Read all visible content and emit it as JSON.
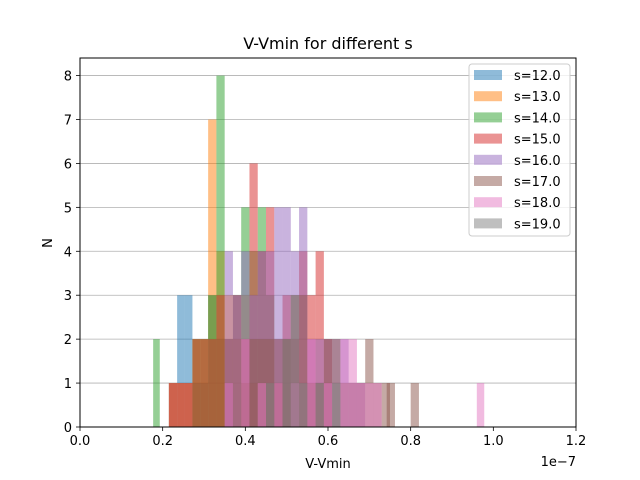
{
  "chart_data": {
    "type": "histogram",
    "title": "V-Vmin for different s",
    "xlabel": "V-Vmin",
    "ylabel": "N",
    "x_scale_label": "1e−7",
    "xlim": [
      0,
      1.2
    ],
    "ylim": [
      0,
      8.4
    ],
    "x_ticks": [
      0.0,
      0.2,
      0.4,
      0.6,
      0.8,
      1.0,
      1.2
    ],
    "x_tick_labels": [
      "0.0",
      "0.2",
      "0.4",
      "0.6",
      "0.8",
      "1.0",
      "1.2"
    ],
    "y_ticks": [
      0,
      1,
      2,
      3,
      4,
      5,
      6,
      7,
      8
    ],
    "y_tick_labels": [
      "0",
      "1",
      "2",
      "3",
      "4",
      "5",
      "6",
      "7",
      "8"
    ],
    "grid": "horizontal",
    "legend_position": "top-right",
    "bar_opacity": 0.5,
    "series": [
      {
        "name": "s=12.0",
        "color": "#1f77b4",
        "bars": [
          [
            0.215,
            0.235,
            1
          ],
          [
            0.235,
            0.253,
            3
          ],
          [
            0.253,
            0.272,
            3
          ],
          [
            0.272,
            0.291,
            1
          ],
          [
            0.291,
            0.31,
            1
          ],
          [
            0.31,
            0.33,
            3
          ],
          [
            0.33,
            0.35,
            2
          ],
          [
            0.35,
            0.37,
            1
          ]
        ]
      },
      {
        "name": "s=13.0",
        "color": "#ff7f0e",
        "bars": [
          [
            0.215,
            0.235,
            1
          ],
          [
            0.235,
            0.253,
            1
          ],
          [
            0.253,
            0.272,
            1
          ],
          [
            0.272,
            0.291,
            2
          ],
          [
            0.291,
            0.31,
            2
          ],
          [
            0.31,
            0.33,
            7
          ],
          [
            0.33,
            0.35,
            4
          ],
          [
            0.35,
            0.37,
            3
          ],
          [
            0.37,
            0.39,
            2
          ],
          [
            0.39,
            0.41,
            3
          ],
          [
            0.41,
            0.43,
            1
          ]
        ]
      },
      {
        "name": "s=14.0",
        "color": "#2ca02c",
        "bars": [
          [
            0.177,
            0.193,
            2
          ],
          [
            0.272,
            0.291,
            2
          ],
          [
            0.291,
            0.31,
            2
          ],
          [
            0.31,
            0.33,
            3
          ],
          [
            0.33,
            0.35,
            8
          ],
          [
            0.35,
            0.37,
            2
          ],
          [
            0.37,
            0.39,
            3
          ],
          [
            0.39,
            0.41,
            5
          ],
          [
            0.41,
            0.43,
            4
          ],
          [
            0.43,
            0.45,
            5
          ],
          [
            0.45,
            0.47,
            3
          ],
          [
            0.47,
            0.49,
            2
          ],
          [
            0.49,
            0.51,
            2
          ]
        ]
      },
      {
        "name": "s=15.0",
        "color": "#d62728",
        "bars": [
          [
            0.215,
            0.235,
            1
          ],
          [
            0.235,
            0.253,
            1
          ],
          [
            0.253,
            0.272,
            1
          ],
          [
            0.272,
            0.291,
            2
          ],
          [
            0.291,
            0.31,
            2
          ],
          [
            0.31,
            0.33,
            2
          ],
          [
            0.33,
            0.35,
            3
          ],
          [
            0.35,
            0.37,
            2
          ],
          [
            0.37,
            0.39,
            3
          ],
          [
            0.39,
            0.41,
            2
          ],
          [
            0.41,
            0.43,
            6
          ],
          [
            0.43,
            0.45,
            4
          ],
          [
            0.45,
            0.47,
            5
          ],
          [
            0.47,
            0.49,
            2
          ],
          [
            0.49,
            0.51,
            3
          ],
          [
            0.51,
            0.53,
            2
          ],
          [
            0.53,
            0.55,
            4
          ],
          [
            0.55,
            0.57,
            3
          ],
          [
            0.57,
            0.59,
            4
          ],
          [
            0.59,
            0.61,
            2
          ]
        ]
      },
      {
        "name": "s=16.0",
        "color": "#9467bd",
        "bars": [
          [
            0.35,
            0.37,
            4
          ],
          [
            0.37,
            0.39,
            3
          ],
          [
            0.39,
            0.41,
            4
          ],
          [
            0.41,
            0.43,
            3
          ],
          [
            0.43,
            0.45,
            4
          ],
          [
            0.45,
            0.47,
            4
          ],
          [
            0.47,
            0.49,
            5
          ],
          [
            0.49,
            0.51,
            5
          ],
          [
            0.51,
            0.53,
            4
          ],
          [
            0.53,
            0.55,
            5
          ],
          [
            0.55,
            0.57,
            2
          ],
          [
            0.57,
            0.59,
            2
          ],
          [
            0.59,
            0.61,
            2
          ],
          [
            0.61,
            0.63,
            2
          ],
          [
            0.63,
            0.65,
            2
          ],
          [
            0.65,
            0.67,
            1
          ],
          [
            0.67,
            0.69,
            1
          ]
        ]
      },
      {
        "name": "s=17.0",
        "color": "#8c564b",
        "bars": [
          [
            0.39,
            0.41,
            1
          ],
          [
            0.41,
            0.43,
            2
          ],
          [
            0.43,
            0.45,
            2
          ],
          [
            0.45,
            0.47,
            2
          ],
          [
            0.47,
            0.49,
            1
          ],
          [
            0.49,
            0.51,
            2
          ],
          [
            0.51,
            0.53,
            3
          ],
          [
            0.53,
            0.55,
            3
          ],
          [
            0.55,
            0.57,
            1
          ],
          [
            0.57,
            0.59,
            1
          ],
          [
            0.59,
            0.61,
            2
          ],
          [
            0.61,
            0.63,
            2
          ],
          [
            0.63,
            0.65,
            1
          ],
          [
            0.65,
            0.67,
            1
          ],
          [
            0.67,
            0.69,
            1
          ],
          [
            0.69,
            0.71,
            2
          ],
          [
            0.71,
            0.73,
            1
          ],
          [
            0.73,
            0.75,
            1
          ],
          [
            0.742,
            0.762,
            1
          ],
          [
            0.8,
            0.82,
            1
          ]
        ]
      },
      {
        "name": "s=18.0",
        "color": "#e377c2",
        "bars": [
          [
            0.35,
            0.37,
            1
          ],
          [
            0.39,
            0.41,
            2
          ],
          [
            0.43,
            0.45,
            1
          ],
          [
            0.47,
            0.49,
            1
          ],
          [
            0.51,
            0.53,
            1
          ],
          [
            0.55,
            0.57,
            2
          ],
          [
            0.59,
            0.61,
            1
          ],
          [
            0.63,
            0.65,
            2
          ],
          [
            0.65,
            0.67,
            2
          ],
          [
            0.67,
            0.69,
            1
          ],
          [
            0.69,
            0.71,
            1
          ],
          [
            0.71,
            0.73,
            1
          ],
          [
            0.96,
            0.978,
            1
          ]
        ]
      },
      {
        "name": "s=19.0",
        "color": "#7f7f7f",
        "bars": [
          [
            0.45,
            0.47,
            1
          ],
          [
            0.49,
            0.51,
            2
          ],
          [
            0.51,
            0.53,
            3
          ],
          [
            0.53,
            0.55,
            1
          ],
          [
            0.57,
            0.59,
            1
          ],
          [
            0.61,
            0.63,
            1
          ]
        ]
      }
    ]
  }
}
